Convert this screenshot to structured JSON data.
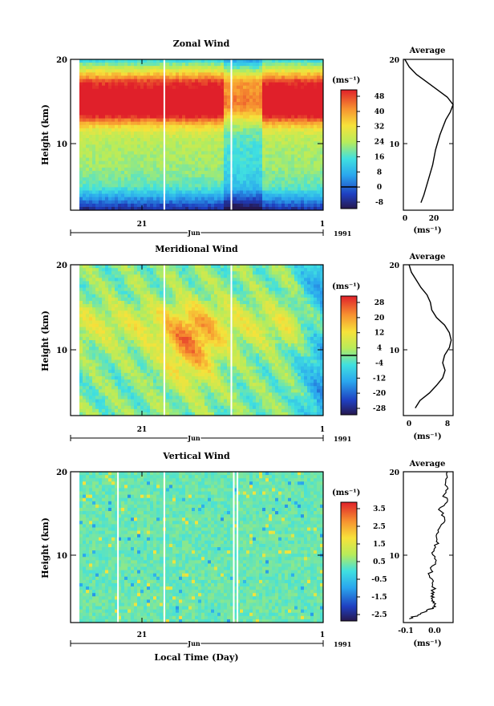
{
  "figure": {
    "xlabel": "Local Time (Day)"
  },
  "chart_data": [
    {
      "type": "heatmap",
      "title": "Zonal Wind",
      "ylabel": "Height (km)",
      "ylim": [
        0,
        20
      ],
      "yticks": [
        "20",
        "10"
      ],
      "x_month_label": "Jun",
      "x_year_label": "1991",
      "xticks": [
        "21",
        "1"
      ],
      "colorbar": {
        "unit": "(ms⁻¹)",
        "labels": [
          "48",
          "40",
          "32",
          "24",
          "16",
          "8",
          "0",
          "-8"
        ],
        "range": [
          -8,
          52
        ],
        "contour_level": 0
      },
      "average": {
        "title": "Average",
        "xlabel": "(ms⁻¹)",
        "xticks": [
          "0",
          "20"
        ],
        "xlim": [
          0,
          34
        ],
        "heights": [
          1,
          2,
          4,
          6,
          8,
          10,
          11,
          12,
          13,
          14,
          15,
          16,
          17,
          18,
          19,
          20
        ],
        "values": [
          12,
          14,
          17,
          20,
          22,
          25,
          27,
          29,
          32,
          34,
          30,
          23,
          16,
          9,
          4,
          1
        ]
      }
    },
    {
      "type": "heatmap",
      "title": "Meridional Wind",
      "ylabel": "Height (km)",
      "ylim": [
        0,
        20
      ],
      "yticks": [
        "20",
        "10"
      ],
      "x_month_label": "Jun",
      "x_year_label": "1991",
      "xticks": [
        "21",
        "1"
      ],
      "colorbar": {
        "unit": "(ms⁻¹)",
        "labels": [
          "28",
          "20",
          "12",
          "4",
          "-4",
          "-12",
          "-20",
          "-28"
        ],
        "range": [
          -32,
          32
        ],
        "contour_level": 0
      },
      "average": {
        "title": "Average",
        "xlabel": "(ms⁻¹)",
        "xticks": [
          "0",
          "8"
        ],
        "xlim": [
          -1.5,
          9
        ],
        "heights": [
          1,
          2,
          3,
          4,
          5,
          6,
          7,
          8,
          9,
          10,
          11,
          12,
          13,
          14,
          15,
          16,
          17,
          18,
          19,
          20
        ],
        "values": [
          1,
          2,
          4,
          5.5,
          6.8,
          7.3,
          6.8,
          7.2,
          8.2,
          8.6,
          8.2,
          7.2,
          5.5,
          4.5,
          4.2,
          3.5,
          2.2,
          1.2,
          0.2,
          -0.3
        ]
      }
    },
    {
      "type": "heatmap",
      "title": "Vertical Wind",
      "ylabel": "Height (km)",
      "ylim": [
        0,
        20
      ],
      "yticks": [
        "20",
        "10"
      ],
      "x_month_label": "Jun",
      "x_year_label": "1991",
      "xticks": [
        "21",
        "1"
      ],
      "colorbar": {
        "unit": "(ms⁻¹)",
        "labels": [
          "3.5",
          "2.5",
          "1.5",
          "0.5",
          "-0.5",
          "-1.5",
          "-2.5"
        ],
        "range": [
          -3,
          4
        ],
        "contour_level": null
      },
      "average": {
        "title": "Average",
        "xlabel": "(ms⁻¹)",
        "xticks": [
          "-0.1",
          "0.0"
        ],
        "xlim": [
          -0.12,
          0.05
        ],
        "heights": [
          0.5,
          1,
          1.5,
          2,
          2.5,
          3,
          3.5,
          4,
          5,
          6,
          7,
          8,
          9,
          10,
          11,
          12,
          13,
          14,
          15,
          16,
          17,
          18,
          19,
          20
        ],
        "values": [
          -0.1,
          -0.07,
          -0.04,
          -0.02,
          -0.01,
          -0.02,
          -0.025,
          -0.015,
          -0.02,
          -0.03,
          -0.025,
          -0.01,
          -0.02,
          -0.01,
          -0.005,
          0.0,
          0.01,
          0.02,
          0.0,
          0.03,
          0.02,
          0.03,
          0.025,
          0.03
        ]
      }
    }
  ]
}
